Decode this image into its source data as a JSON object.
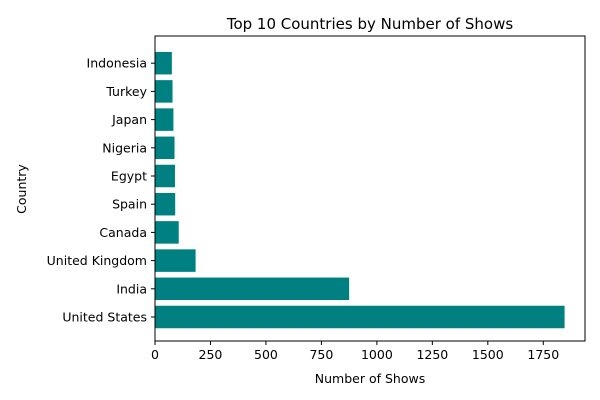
{
  "chart_data": {
    "type": "bar",
    "orientation": "horizontal",
    "title": "Top 10 Countries by Number of Shows",
    "xlabel": "Number of Shows",
    "ylabel": "Country",
    "categories": [
      "United States",
      "India",
      "United Kingdom",
      "Canada",
      "Spain",
      "Egypt",
      "Nigeria",
      "Japan",
      "Turkey",
      "Indonesia"
    ],
    "values": [
      1846,
      875,
      183,
      107,
      91,
      90,
      88,
      83,
      79,
      76
    ],
    "xlim": [
      0,
      1938
    ],
    "xticks": [
      0,
      250,
      500,
      750,
      1000,
      1250,
      1500,
      1750
    ],
    "xtick_labels": [
      "0",
      "250",
      "500",
      "750",
      "1000",
      "1250",
      "1500",
      "1750"
    ],
    "bar_color": "#008080",
    "grid": false,
    "legend": false
  }
}
